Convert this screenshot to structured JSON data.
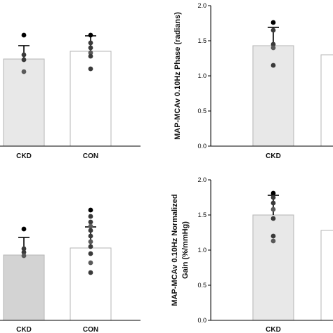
{
  "chart_data": [
    {
      "panel": "top-left",
      "type": "bar",
      "ylabel": "",
      "ylim": [
        0,
        2.0
      ],
      "yticks_visible": false,
      "categories": [
        "CKD",
        "CON"
      ],
      "bar_colors": [
        "#e8e8e8",
        "#ffffff"
      ],
      "values": [
        1.24,
        1.35
      ],
      "error_upper": [
        1.43,
        1.57
      ],
      "points": [
        [
          1.58,
          1.3,
          1.23,
          1.06
        ],
        [
          1.58,
          1.47,
          1.4,
          1.33,
          1.28,
          1.1
        ]
      ]
    },
    {
      "panel": "top-right",
      "type": "bar",
      "ylabel": "MAP-MCAv 0.10Hz Phase (radians)",
      "ylim": [
        0,
        2.0
      ],
      "yticks": [
        "0.0",
        "0.5",
        "1.0",
        "1.5",
        "2.0"
      ],
      "categories": [
        "CKD",
        ""
      ],
      "bar_colors": [
        "#e8e8e8",
        "#ffffff"
      ],
      "values": [
        1.43,
        1.3
      ],
      "error_upper": [
        1.69,
        null
      ],
      "points": [
        [
          1.76,
          1.65,
          1.45,
          1.4,
          1.15
        ],
        []
      ]
    },
    {
      "panel": "bottom-left",
      "type": "bar",
      "ylabel": "",
      "ylim": [
        0,
        2.0
      ],
      "yticks_visible": false,
      "categories": [
        "CKD",
        "CON"
      ],
      "bar_colors": [
        "#d3d3d3",
        "#ffffff"
      ],
      "values": [
        0.93,
        1.03
      ],
      "error_upper": [
        1.18,
        1.33
      ],
      "points": [
        [
          1.3,
          1.02,
          0.97,
          0.92
        ],
        [
          1.57,
          1.48,
          1.4,
          1.34,
          1.28,
          1.2,
          1.12,
          1.05,
          0.95,
          0.82,
          0.68
        ]
      ]
    },
    {
      "panel": "bottom-right",
      "type": "bar",
      "ylabel": "MAP-MCAv 0.10Hz Normalized Gain (%/mmHg)",
      "ylabel_lines": [
        "MAP-MCAv 0.10Hz Normalized",
        "Gain (%/mmHg)"
      ],
      "ylim": [
        0,
        2.0
      ],
      "yticks": [
        "0.0",
        "0.5",
        "1.0",
        "1.5",
        "2.0"
      ],
      "categories": [
        "CKD",
        ""
      ],
      "bar_colors": [
        "#e8e8e8",
        "#ffffff"
      ],
      "values": [
        1.5,
        1.28
      ],
      "error_upper": [
        1.78,
        null
      ],
      "points": [
        [
          1.81,
          1.75,
          1.67,
          1.58,
          1.45,
          1.2,
          1.13
        ],
        []
      ]
    }
  ]
}
